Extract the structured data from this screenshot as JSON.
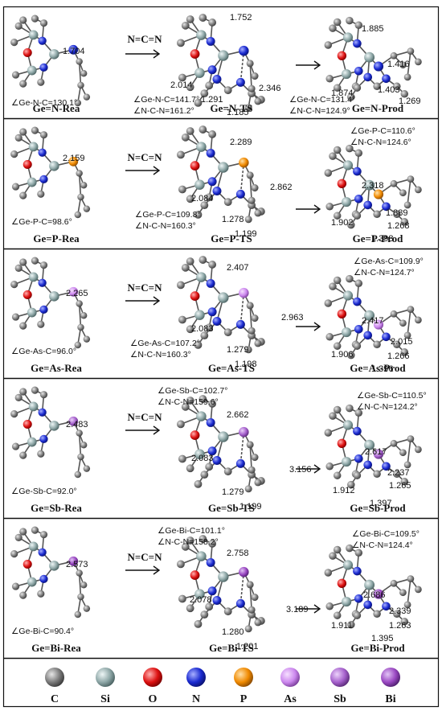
{
  "reagent": "N=C=N",
  "rows": [
    {
      "id": "N",
      "rea": {
        "label": "Ge=N-Rea",
        "bond": "1.704",
        "angles": [
          "∠Ge-N-C=130.1°"
        ]
      },
      "ts": {
        "label": "Ge=N-TS",
        "bonds": [
          "1.752",
          "2.014",
          "2.346",
          "1.291",
          "1.185"
        ],
        "angles": [
          "∠Ge-N-C=141.7°",
          "∠N-C-N=161.2°"
        ]
      },
      "prod": {
        "label": "Ge=N-Prod",
        "bonds": [
          "1.885",
          "1.416",
          "1.874",
          "1.403",
          "1.269"
        ],
        "angles": [
          "∠Ge-N-C=131.4°",
          "∠N-C-N=124.9°"
        ]
      },
      "color": "#2233cc"
    },
    {
      "id": "P",
      "rea": {
        "label": "Ge=P-Rea",
        "bond": "2.159",
        "angles": [
          "∠Ge-P-C=98.6°"
        ]
      },
      "ts": {
        "label": "Ge=P-TS",
        "bonds": [
          "2.289",
          "2.862",
          "2.084",
          "1.278",
          "1.199"
        ],
        "angles": [
          "∠Ge-P-C=109.8°",
          "∠N-C-N=160.3°"
        ]
      },
      "prod": {
        "label": "Ge=P-Prod",
        "bonds": [
          "2.318",
          "1.889",
          "1.902",
          "1.268",
          "1.398"
        ],
        "angles": [
          "∠Ge-P-C=110.6°",
          "∠N-C-N=124.6°"
        ]
      },
      "color": "#ee8800"
    },
    {
      "id": "As",
      "rea": {
        "label": "Ge=As-Rea",
        "bond": "2.265",
        "angles": [
          "∠Ge-As-C=96.0°"
        ]
      },
      "ts": {
        "label": "Ge=As-TS",
        "bonds": [
          "2.407",
          "2.963",
          "2.083",
          "1.279",
          "1.198"
        ],
        "angles": [
          "∠Ge-As-C=107.2°",
          "∠N-C-N=160.3°"
        ]
      },
      "prod": {
        "label": "Ge=As-Prod",
        "bonds": [
          "2.417",
          "2.015",
          "1.906",
          "1.266",
          "1.396"
        ],
        "angles": [
          "∠Ge-As-C=109.9°",
          "∠N-C-N=124.7°"
        ]
      },
      "color": "#cc77dd"
    },
    {
      "id": "Sb",
      "rea": {
        "label": "Ge=Sb-Rea",
        "bond": "2.483",
        "angles": [
          "∠Ge-Sb-C=92.0°"
        ]
      },
      "ts": {
        "label": "Ge=Sb-TS",
        "bonds": [
          "2.662",
          "3.156",
          "2.083",
          "1.279",
          "1.199"
        ],
        "angles": [
          "∠Ge-Sb-C=102.7°",
          "∠N-C-N=159.6°"
        ]
      },
      "prod": {
        "label": "Ge=Sb-Prod",
        "bonds": [
          "2.617",
          "2.237",
          "1.265",
          "1.912",
          "1.397"
        ],
        "angles": [
          "∠Ge-Sb-C=110.5°",
          "∠N-C-N=124.2°"
        ]
      },
      "color": "#aa55cc"
    },
    {
      "id": "Bi",
      "rea": {
        "label": "Ge=Bi-Rea",
        "bond": "2.573",
        "angles": [
          "∠Ge-Bi-C=90.4°"
        ]
      },
      "ts": {
        "label": "Ge=Bi-TS",
        "bonds": [
          "2.758",
          "3.189",
          "2.078",
          "1.280",
          "1.201"
        ],
        "angles": [
          "∠Ge-Bi-C=101.1°",
          "∠N-C-N=158.2°"
        ]
      },
      "prod": {
        "label": "Ge=Bi-Prod",
        "bonds": [
          "2.686",
          "2.339",
          "1.911",
          "1.263",
          "1.395"
        ],
        "angles": [
          "∠Ge-Bi-C=109.5°",
          "∠N-C-N=124.4°"
        ]
      },
      "color": "#9944bb"
    }
  ],
  "legend": [
    {
      "symbol": "C",
      "color": "#808080"
    },
    {
      "symbol": "Si",
      "color": "#8fa8a8"
    },
    {
      "symbol": "O",
      "color": "#dd1111"
    },
    {
      "symbol": "N",
      "color": "#1a2ad0"
    },
    {
      "symbol": "P",
      "color": "#f08a00"
    },
    {
      "symbol": "As",
      "color": "#cc88ee"
    },
    {
      "symbol": "Sb",
      "color": "#a560cc"
    },
    {
      "symbol": "Bi",
      "color": "#9a48c2"
    }
  ],
  "atom_colors": {
    "C": "#808080",
    "Si": "#8fa8a8",
    "O": "#dd1111",
    "N": "#1a2ad0",
    "H": "#bfbfbf"
  }
}
